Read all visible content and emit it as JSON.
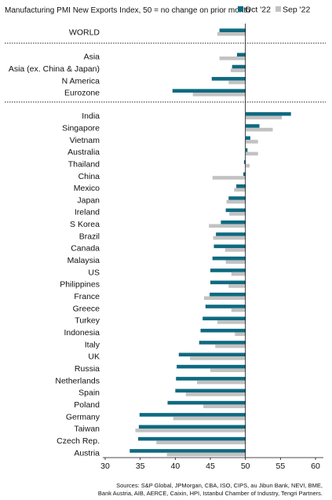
{
  "chart_data": {
    "type": "bar",
    "orientation": "horizontal",
    "title": "Manufacturing PMI New Exports Index, 50 = no change on prior month",
    "legend_position": "top-right",
    "xlim": [
      27,
      62
    ],
    "x_ticks": [
      30,
      35,
      40,
      45,
      50,
      55,
      60
    ],
    "baseline": 50,
    "grid": false,
    "colors": {
      "Oct '22": "#0e6a80",
      "Sep '22": "#c2c2c2"
    },
    "groups": [
      {
        "categories": [
          "WORLD"
        ]
      },
      {
        "categories": [
          "Asia",
          "Asia (ex. China & Japan)",
          "N America",
          "Eurozone"
        ]
      },
      {
        "categories": [
          "India",
          "Singapore",
          "Vietnam",
          "Australia",
          "Thailand",
          "China",
          "Mexico",
          "Japan",
          "Ireland",
          "S Korea",
          "Brazil",
          "Canada",
          "Malaysia",
          "US",
          "Philippines",
          "France",
          "Greece",
          "Turkey",
          "Indonesia",
          "Italy",
          "UK",
          "Russia",
          "Netherlands",
          "Spain",
          "Poland",
          "Germany",
          "Taiwan",
          "Czech Rep.",
          "Austria"
        ]
      }
    ],
    "categories": [
      "WORLD",
      "Asia",
      "Asia (ex. China & Japan)",
      "N America",
      "Eurozone",
      "India",
      "Singapore",
      "Vietnam",
      "Australia",
      "Thailand",
      "China",
      "Mexico",
      "Japan",
      "Ireland",
      "S Korea",
      "Brazil",
      "Canada",
      "Malaysia",
      "US",
      "Philippines",
      "France",
      "Greece",
      "Turkey",
      "Indonesia",
      "Italy",
      "UK",
      "Russia",
      "Netherlands",
      "Spain",
      "Poland",
      "Germany",
      "Taiwan",
      "Czech Rep.",
      "Austria"
    ],
    "series": [
      {
        "name": "Oct '22",
        "values": [
          46.3,
          48.8,
          48.1,
          45.2,
          39.6,
          56.5,
          52.0,
          50.7,
          50.3,
          49.8,
          49.7,
          48.7,
          47.6,
          47.2,
          46.5,
          45.8,
          45.5,
          45.3,
          45.0,
          45.0,
          44.9,
          44.3,
          43.9,
          43.6,
          43.4,
          40.5,
          40.2,
          40.1,
          40.0,
          38.9,
          34.9,
          34.8,
          34.7,
          33.5
        ]
      },
      {
        "name": "Sep '22",
        "values": [
          46.0,
          46.3,
          47.9,
          47.6,
          42.5,
          55.2,
          53.9,
          51.8,
          51.8,
          50.6,
          45.3,
          48.4,
          47.3,
          47.7,
          44.8,
          45.4,
          47.1,
          47.2,
          48.0,
          47.6,
          44.1,
          48.0,
          46.0,
          48.5,
          45.7,
          42.1,
          45.0,
          43.1,
          41.5,
          44.0,
          39.7,
          34.3,
          37.3,
          38.8
        ]
      }
    ]
  },
  "footer": {
    "source_line_1": "Sources: S&P Global, JPMorgan, CBA, ISO, CIPS, au Jibun Bank, NEVI, BME,",
    "source_line_2": "Bank Austria, AIB, AERCE, Caixin, HPI, Istanbul Chamber of Industry, Tengri Partners."
  }
}
